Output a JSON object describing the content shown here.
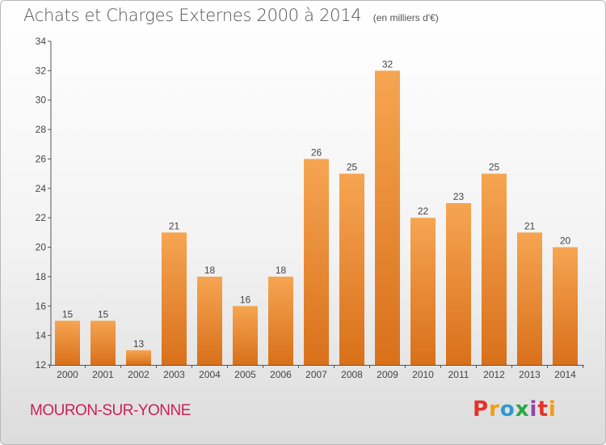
{
  "header": {
    "title": "Achats et Charges Externes 2000 à 2014",
    "unit": "(en milliers d'€)"
  },
  "footer": {
    "place": "MOURON-SUR-YONNE",
    "logo": [
      "P",
      "r",
      "o",
      "x",
      "i",
      "t",
      "i"
    ],
    "logo_colors": [
      "#e8312a",
      "#f39c12",
      "#2e9ad0",
      "#27a844",
      "#8e44ad",
      "#e8312a",
      "#f39c12"
    ]
  },
  "colors": {
    "bar_top": "#f6a552",
    "bar_bottom": "#d9701a",
    "axis": "#555555",
    "place": "#cc1f5a"
  },
  "chart_data": {
    "type": "bar",
    "title": "Achats et Charges Externes 2000 à 2014",
    "subtitle": "(en milliers d'€)",
    "categories": [
      "2000",
      "2001",
      "2002",
      "2003",
      "2004",
      "2005",
      "2006",
      "2007",
      "2008",
      "2009",
      "2010",
      "2011",
      "2012",
      "2013",
      "2014"
    ],
    "values": [
      15,
      15,
      13,
      21,
      18,
      16,
      18,
      26,
      25,
      32,
      22,
      23,
      25,
      21,
      20
    ],
    "ylim": [
      12,
      34
    ],
    "yticks": [
      12,
      14,
      16,
      18,
      20,
      22,
      24,
      26,
      28,
      30,
      32,
      34
    ],
    "grid": false,
    "data_labels": true
  }
}
